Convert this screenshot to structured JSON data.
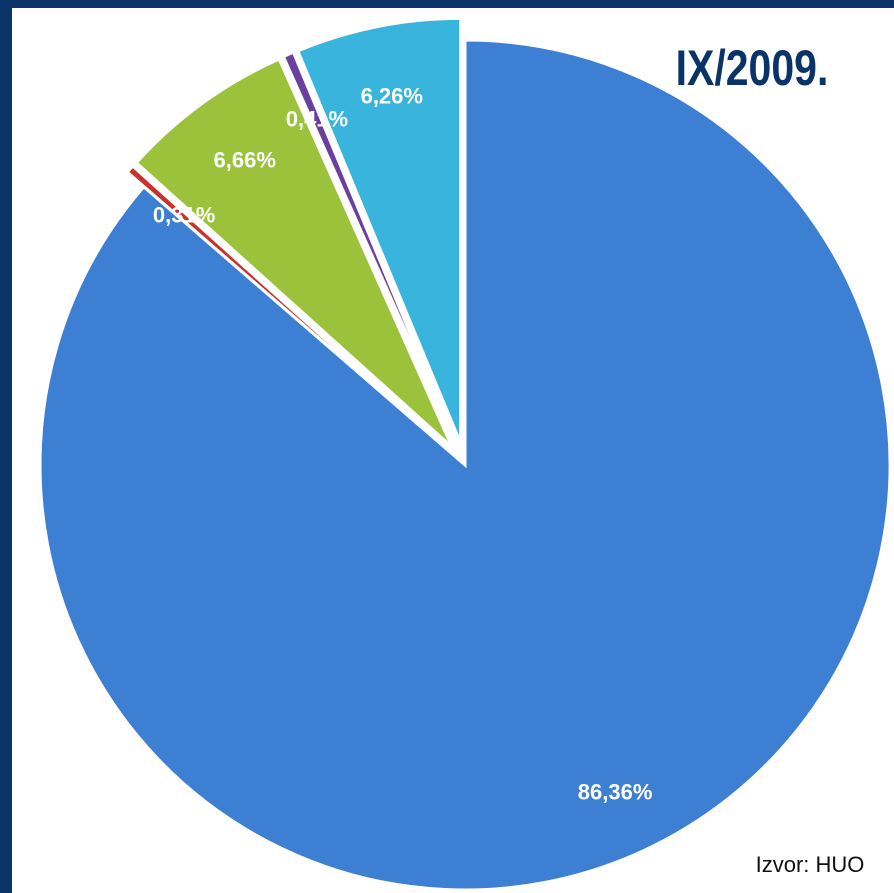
{
  "chart_data": {
    "type": "pie",
    "title": "IX/2009.",
    "annotation": "Izvor: HUO",
    "categories": [
      null,
      null,
      null,
      null,
      null
    ],
    "values": [
      86.36,
      0.31,
      6.66,
      0.41,
      6.26
    ],
    "value_labels": [
      "86,36%",
      "0,31%",
      "6,66%",
      "0,41%",
      "6,26%"
    ],
    "colors": [
      "#3d7fd3",
      "#c8322a",
      "#9cc23c",
      "#6a3fa0",
      "#39b4dc"
    ]
  }
}
